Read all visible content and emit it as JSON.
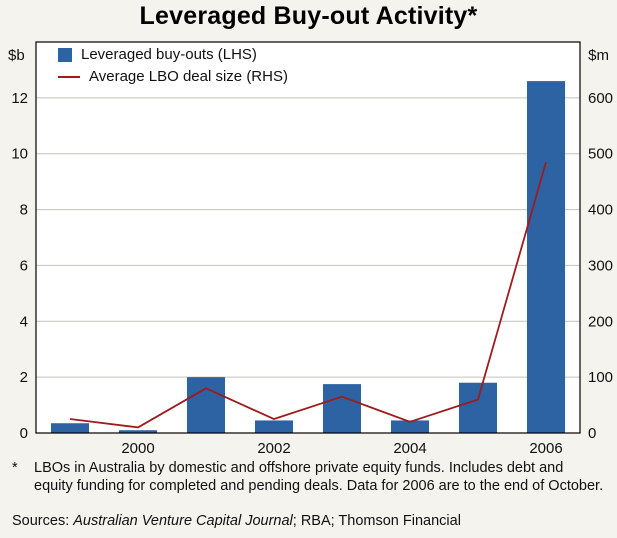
{
  "title": "Leveraged Buy-out Activity*",
  "legend": [
    {
      "label": "Leveraged buy-outs (LHS)",
      "type": "bar",
      "color": "#2d62a3"
    },
    {
      "label": "Average LBO deal size (RHS)",
      "type": "line",
      "color": "#9e1b1e"
    }
  ],
  "axes": {
    "left_unit": "$b",
    "right_unit": "$m",
    "left_ticks": [
      0,
      2,
      4,
      6,
      8,
      10,
      12
    ],
    "right_ticks": [
      0,
      100,
      200,
      300,
      400,
      500,
      600
    ],
    "x_tick_labels": [
      "2000",
      "2002",
      "2004",
      "2006"
    ]
  },
  "chart_data": {
    "type": "bar",
    "title": "Leveraged Buy-out Activity*",
    "categories": [
      1999,
      2000,
      2001,
      2002,
      2003,
      2004,
      2005,
      2006
    ],
    "series": [
      {
        "name": "Leveraged buy-outs (LHS)",
        "type": "bar",
        "axis": "left",
        "values": [
          0.35,
          0.1,
          2.0,
          0.45,
          1.75,
          0.45,
          1.8,
          12.6
        ]
      },
      {
        "name": "Average LBO deal size (RHS)",
        "type": "line",
        "axis": "right",
        "values": [
          25,
          10,
          80,
          25,
          65,
          20,
          60,
          485
        ]
      }
    ],
    "ylim_left": [
      0,
      14
    ],
    "ylim_right": [
      0,
      700
    ],
    "grid": "horizontal",
    "legend_position": "top-left-inside",
    "colors": {
      "bar": "#2d62a3",
      "line": "#9e1b1e",
      "gridline": "#c3c2bd",
      "plot_border": "#000000",
      "plot_fill": "#ffffff"
    }
  },
  "footnote": {
    "marker": "*",
    "text": "LBOs in Australia by domestic and offshore private equity funds. Includes debt and equity funding for completed and pending deals. Data for 2006 are to the end of October."
  },
  "sources": {
    "label": "Sources:",
    "italic_part": "Australian Venture Capital Journal",
    "rest": "; RBA; Thomson Financial"
  }
}
